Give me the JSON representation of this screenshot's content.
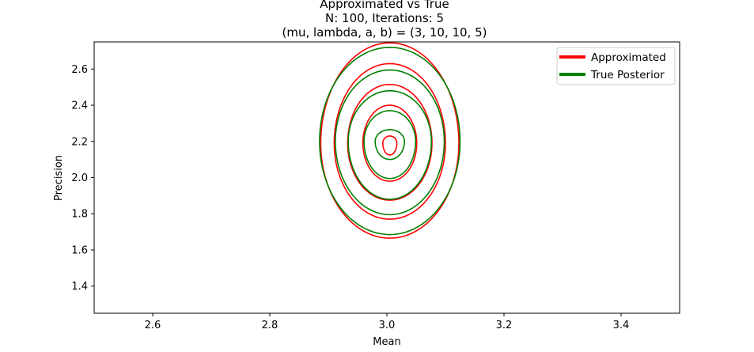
{
  "chart_data": {
    "type": "contour",
    "title_lines": [
      "Approximated vs True",
      "N: 100, Iterations: 5",
      "(mu, lambda, a, b) = (3, 10, 10, 5)"
    ],
    "xlabel": "Mean",
    "ylabel": "Precision",
    "xlim": [
      2.5,
      3.5
    ],
    "ylim": [
      1.25,
      2.75
    ],
    "xticks": [
      2.6,
      2.8,
      3.0,
      3.2,
      3.4
    ],
    "xtick_labels": [
      "2.6",
      "2.8",
      "3.0",
      "3.2",
      "3.4"
    ],
    "yticks": [
      1.4,
      1.6,
      1.8,
      2.0,
      2.2,
      2.4,
      2.6
    ],
    "ytick_labels": [
      "1.4",
      "1.6",
      "1.8",
      "2.0",
      "2.2",
      "2.4",
      "2.6"
    ],
    "grid": false,
    "legend_position": "top-right",
    "series": [
      {
        "name": "Approximated",
        "color": "#ff0000",
        "contours": [
          {
            "center_x": 3.005,
            "center_y": 2.19,
            "half_width": 0.118,
            "bottom": 1.665,
            "top": 2.745
          },
          {
            "center_x": 3.005,
            "center_y": 2.19,
            "half_width": 0.095,
            "bottom": 1.77,
            "top": 2.63
          },
          {
            "center_x": 3.005,
            "center_y": 2.19,
            "half_width": 0.072,
            "bottom": 1.875,
            "top": 2.515
          },
          {
            "center_x": 3.005,
            "center_y": 2.19,
            "half_width": 0.046,
            "bottom": 1.98,
            "top": 2.4
          },
          {
            "center_x": 3.005,
            "center_y": 2.19,
            "half_width": 0.012,
            "bottom": 2.125,
            "top": 2.23
          }
        ]
      },
      {
        "name": "True Posterior",
        "color": "#008000",
        "contours": [
          {
            "center_x": 3.005,
            "center_y": 2.2,
            "half_width": 0.12,
            "bottom": 1.685,
            "top": 2.72
          },
          {
            "center_x": 3.005,
            "center_y": 2.2,
            "half_width": 0.093,
            "bottom": 1.795,
            "top": 2.595
          },
          {
            "center_x": 3.005,
            "center_y": 2.2,
            "half_width": 0.071,
            "bottom": 1.88,
            "top": 2.48
          },
          {
            "center_x": 3.005,
            "center_y": 2.2,
            "half_width": 0.044,
            "bottom": 1.995,
            "top": 2.37
          },
          {
            "center_x": 3.005,
            "center_y": 2.2,
            "half_width": 0.025,
            "bottom": 2.1,
            "top": 2.265
          }
        ]
      }
    ]
  }
}
